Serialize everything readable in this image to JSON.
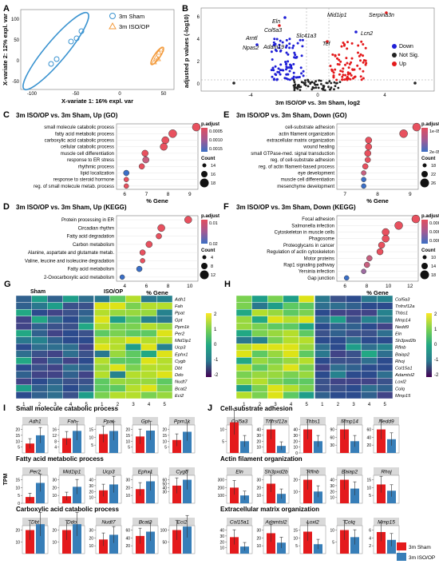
{
  "panelA": {
    "letter": "A",
    "xlabel": "X-variate 1: 16% expl. var",
    "ylabel": "X-variate 2: 12% expl. var",
    "xticks": [
      "-100",
      "-50",
      "0",
      "50"
    ],
    "yticks": [
      "-50",
      "0",
      "50",
      "100"
    ],
    "legend": [
      "3m Sham",
      "3m ISO/OP"
    ]
  },
  "panelB": {
    "letter": "B",
    "title": "3m ISO/OP vs. 3m Sham, log2",
    "ylabel": "adjusted p values (-log10)",
    "xticks": [
      "-4",
      "0",
      "4"
    ],
    "yticks": [
      "0",
      "2",
      "4",
      "6"
    ],
    "legend_title": "",
    "legend": [
      "Down",
      "Not Sig.",
      "Up"
    ],
    "genes": [
      "Mid1ip1",
      "Serpina3n",
      "Eln",
      "Col5a3",
      "Lcn2",
      "Arntl",
      "Slc41a3",
      "Tef",
      "Npas2",
      "Adam19"
    ]
  },
  "panelC": {
    "letter": "C",
    "title": "3m ISO/OP vs. 3m Sham, Up (GO)",
    "xlabel": "% Gene",
    "terms": [
      "small molecule catabolic process",
      "fatty acid metabolic process",
      "carboxylic acid catabolic process",
      "cellular catabolic process",
      "muscle cell differentiation",
      "response to ER stress",
      "rhythmic process",
      "lipid localization",
      "response to steroid hormone",
      "reg. of small molecule metab. process"
    ],
    "xticks": [
      "6",
      "7",
      "8",
      "9"
    ],
    "padj_title": "p.adjust",
    "padj_ticks": [
      "0.0005",
      "0.0010",
      "0.0015"
    ],
    "count_title": "Count",
    "counts": [
      "14",
      "16",
      "18"
    ]
  },
  "panelD": {
    "letter": "D",
    "title": "3m ISO/OP vs. 3m Sham, Up (KEGG)",
    "xlabel": "% Gene",
    "terms": [
      "Protein processing in ER",
      "Circadian rhythm",
      "Fatty acid degradation",
      "Carbon metabolism",
      "Alanine, aspartate and glutamate metab.",
      "Valine, leucine and isoleucine degradation",
      "Fatty acid metabolism",
      "2-Oxocarboxylic acid metabolism"
    ],
    "xticks": [
      "4",
      "6",
      "8",
      "10"
    ],
    "padj_title": "p.adjust",
    "padj_ticks": [
      "0.01",
      "0.02"
    ],
    "count_title": "Count",
    "counts": [
      "4",
      "8",
      "12"
    ]
  },
  "panelE": {
    "letter": "E",
    "title": "3m ISO/OP vs. 3m Sham, Down (GO)",
    "xlabel": "% Gene",
    "terms": [
      "cell-substrate adhesion",
      "actin filament organization",
      "extracellular matrix organization",
      "wound healing",
      "small GTPase-med. signal transduction",
      "reg. of cell-substrate adhesion",
      "reg. of actin filament-based process",
      "eye development",
      "muscle cell differentiation",
      "mesenchyme development"
    ],
    "xticks": [
      "7",
      "8",
      "9"
    ],
    "padj_title": "p.adjust",
    "padj_ticks": [
      "1e-05",
      "2e-05"
    ],
    "count_title": "Count",
    "counts": [
      "18",
      "22",
      "26"
    ]
  },
  "panelF": {
    "letter": "F",
    "title": "3m ISO/OP vs. 3m Sham, Down (KEGG)",
    "xlabel": "% Gene",
    "terms": [
      "Focal adhesion",
      "Salmonella infection",
      "Cytoskeleton in muscle cells",
      "Phagosome",
      "Proteoglycans in cancer",
      "Regulation of actin cytoskeleton",
      "Motor proteins",
      "Rap1 signaling pathway",
      "Yersinia infection",
      "Gap junction"
    ],
    "xticks": [
      "6",
      "8",
      "10",
      "12"
    ],
    "padj_title": "p.adjust",
    "padj_ticks": [
      "0.00005",
      "0.00010",
      "0.00015"
    ],
    "count_title": "Count",
    "counts": [
      "10",
      "14",
      "18"
    ]
  },
  "panelG": {
    "letter": "G",
    "groups": [
      "Sham",
      "ISO/OP"
    ],
    "genes": [
      "Adh1",
      "Fah",
      "Ppat",
      "Gpt",
      "Ppm1k",
      "Per2",
      "Mid1ip1",
      "Ucp3",
      "Ephx1",
      "Cygb",
      "Dbt",
      "Ddo",
      "Nudt7",
      "Bcat2",
      "Eci2"
    ],
    "cols": [
      "1",
      "2",
      "3",
      "4",
      "5",
      "1",
      "2",
      "3",
      "4",
      "5"
    ],
    "scale": [
      "2",
      "1",
      "0",
      "-1",
      "-2"
    ]
  },
  "panelH": {
    "letter": "H",
    "genes": [
      "Col5a3",
      "Tnfrsf12a",
      "Thbs1",
      "Mmp14",
      "Nedd9",
      "Eln",
      "Sh3pxd2b",
      "Rflnb",
      "Baiap2",
      "Rhoj",
      "Col15a1",
      "Adamtsl2",
      "Loxl2",
      "Colq",
      "Mmp15"
    ],
    "cols": [
      "1",
      "2",
      "3",
      "4",
      "5",
      "1",
      "2",
      "3",
      "4",
      "5"
    ],
    "scale": [
      "2",
      "1",
      "0",
      "-1",
      "-2"
    ]
  },
  "panelI": {
    "letter": "I",
    "ylabel": "TPM",
    "sections": [
      {
        "title": "Small molecule catabolic process",
        "genes": [
          "Adh1",
          "Fah",
          "Ppat",
          "Gpt",
          "Ppm1k"
        ],
        "sham": [
          8,
          10,
          12,
          14,
          11
        ],
        "iso": [
          15,
          15,
          14,
          19,
          18
        ],
        "yticks": [
          [
            "5",
            "10",
            "15",
            "20"
          ],
          [
            "4",
            "8",
            "12",
            "16"
          ],
          [
            "5",
            "10",
            "15"
          ],
          [
            "5",
            "10",
            "15",
            "20"
          ],
          [
            "5",
            "10",
            "15",
            "20"
          ]
        ]
      },
      {
        "title": "Fatty acid metabolic process",
        "genes": [
          "Per2",
          "Mid1ip1",
          "Ucp3",
          "Ephx1",
          "Cygb"
        ],
        "sham": [
          4,
          9,
          22,
          18,
          45
        ],
        "iso": [
          13,
          21,
          32,
          28,
          60
        ],
        "yticks": [
          [
            "0",
            "5",
            "10",
            "15"
          ],
          [
            "10",
            "20",
            "30"
          ],
          [
            "10",
            "20",
            "30",
            "40"
          ],
          [
            "10",
            "20",
            "30"
          ],
          [
            "30",
            "40",
            "50",
            "60"
          ]
        ]
      },
      {
        "title": "Carboxylic acid catabolic process",
        "genes": [
          "Dbt",
          "Ddo",
          "Nudt7",
          "Bcat2",
          "Eci2"
        ],
        "sham": [
          20,
          20,
          18,
          45,
          100
        ],
        "iso": [
          25,
          25,
          24,
          56,
          115
        ],
        "yticks": [
          [
            "10",
            "20"
          ],
          [
            "10",
            "20"
          ],
          [
            "10",
            "20",
            "30"
          ],
          [
            "20",
            "40",
            "60"
          ],
          [
            "50",
            "100"
          ]
        ]
      }
    ]
  },
  "panelJ": {
    "letter": "J",
    "sections": [
      {
        "title": "Cell-substrate adhesion",
        "genes": [
          "Col5a3",
          "Tnfrsf12a",
          "Thbs1",
          "Mmp14",
          "Nedd9"
        ],
        "sham": [
          13,
          40,
          40,
          90,
          60
        ],
        "iso": [
          5,
          12,
          20,
          45,
          35
        ],
        "yticks": [
          [
            "5",
            "10"
          ],
          [
            "10",
            "20",
            "30",
            "40"
          ],
          [
            "0",
            "10",
            "20",
            "30",
            "40"
          ],
          [
            "30",
            "60",
            "90"
          ],
          [
            "20",
            "40",
            "60"
          ]
        ]
      },
      {
        "title": "Actin filament organization",
        "genes": [
          "Eln",
          "Sh3pxd2b",
          "Rflnb",
          "Baiap2",
          "Rhoj"
        ],
        "sham": [
          200,
          25,
          20,
          40,
          12
        ],
        "iso": [
          100,
          12,
          10,
          25,
          8
        ],
        "yticks": [
          [
            "100",
            "200",
            "300"
          ],
          [
            "10",
            "20",
            "30"
          ],
          [
            "10",
            "20"
          ],
          [
            "10",
            "20",
            "30",
            "40"
          ],
          [
            "5",
            "10",
            "15"
          ]
        ]
      },
      {
        "title": "Extracellular matrix organization",
        "genes": [
          "Col15a1",
          "Adamtsl2",
          "Loxl2",
          "Colq",
          "Mmp15"
        ],
        "sham": [
          28,
          26,
          14,
          10,
          5.5
        ],
        "iso": [
          12,
          14,
          6,
          7,
          3.5
        ],
        "yticks": [
          [
            "10",
            "20",
            "30",
            "40"
          ],
          [
            "10",
            "20",
            "30"
          ],
          [
            "5",
            "10",
            "15"
          ],
          [
            "5",
            "10"
          ],
          [
            "2",
            "4",
            "6"
          ]
        ]
      }
    ]
  },
  "legend_groups": [
    "3m Sham",
    "3m ISO/OP"
  ],
  "colors": {
    "sham": "#e41a1c",
    "iso": "#377eb8",
    "down": "#1f1fd6",
    "up": "#e41a1c",
    "ns": "#222222"
  }
}
